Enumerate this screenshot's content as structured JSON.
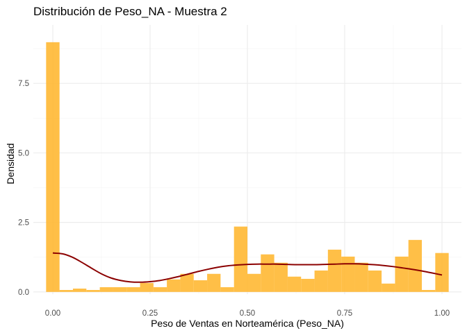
{
  "chart_data": {
    "type": "bar",
    "title": "Distribución de Peso_NA - Muestra 2",
    "xlabel": "Peso de Ventas en Norteamérica (Peso_NA)",
    "ylabel": "Densidad",
    "xlim": [
      -0.05,
      1.05
    ],
    "ylim": [
      -0.08,
      9.6
    ],
    "x_ticks": [
      {
        "value": 0.0,
        "label": "0.00"
      },
      {
        "value": 0.25,
        "label": "0.25"
      },
      {
        "value": 0.5,
        "label": "0.50"
      },
      {
        "value": 0.75,
        "label": "0.75"
      },
      {
        "value": 1.0,
        "label": "1.00"
      }
    ],
    "y_ticks": [
      {
        "value": 0.0,
        "label": "0.0"
      },
      {
        "value": 2.5,
        "label": "2.5"
      },
      {
        "value": 5.0,
        "label": "5.0"
      },
      {
        "value": 7.5,
        "label": "7.5"
      }
    ],
    "grid": true,
    "bin_width": 0.0345,
    "bins": [
      {
        "x": 0.0,
        "density": 8.98
      },
      {
        "x": 0.0345,
        "density": 0.07
      },
      {
        "x": 0.069,
        "density": 0.12
      },
      {
        "x": 0.1035,
        "density": 0.07
      },
      {
        "x": 0.138,
        "density": 0.17
      },
      {
        "x": 0.1724,
        "density": 0.17
      },
      {
        "x": 0.2069,
        "density": 0.17
      },
      {
        "x": 0.2414,
        "density": 0.32
      },
      {
        "x": 0.2759,
        "density": 0.17
      },
      {
        "x": 0.3103,
        "density": 0.45
      },
      {
        "x": 0.3448,
        "density": 0.65
      },
      {
        "x": 0.3793,
        "density": 0.42
      },
      {
        "x": 0.4138,
        "density": 0.65
      },
      {
        "x": 0.4483,
        "density": 0.17
      },
      {
        "x": 0.4828,
        "density": 2.35
      },
      {
        "x": 0.5172,
        "density": 0.65
      },
      {
        "x": 0.5517,
        "density": 1.35
      },
      {
        "x": 0.5862,
        "density": 1.05
      },
      {
        "x": 0.6207,
        "density": 0.55
      },
      {
        "x": 0.6552,
        "density": 0.47
      },
      {
        "x": 0.6897,
        "density": 0.77
      },
      {
        "x": 0.7241,
        "density": 1.52
      },
      {
        "x": 0.7586,
        "density": 1.27
      },
      {
        "x": 0.7931,
        "density": 1.05
      },
      {
        "x": 0.8276,
        "density": 0.77
      },
      {
        "x": 0.8621,
        "density": 0.3
      },
      {
        "x": 0.8966,
        "density": 1.27
      },
      {
        "x": 0.931,
        "density": 1.87
      },
      {
        "x": 0.9655,
        "density": 0.07
      },
      {
        "x": 1.0,
        "density": 1.4
      }
    ],
    "density_curve": {
      "x": [
        0.0,
        0.025,
        0.05,
        0.075,
        0.1,
        0.125,
        0.15,
        0.175,
        0.2,
        0.225,
        0.25,
        0.275,
        0.3,
        0.325,
        0.35,
        0.375,
        0.4,
        0.425,
        0.45,
        0.475,
        0.5,
        0.525,
        0.55,
        0.575,
        0.6,
        0.625,
        0.65,
        0.675,
        0.7,
        0.725,
        0.75,
        0.775,
        0.8,
        0.825,
        0.85,
        0.875,
        0.9,
        0.925,
        0.95,
        0.975,
        1.0
      ],
      "y": [
        1.4,
        1.37,
        1.25,
        1.06,
        0.85,
        0.65,
        0.5,
        0.41,
        0.36,
        0.35,
        0.37,
        0.41,
        0.48,
        0.56,
        0.65,
        0.74,
        0.82,
        0.89,
        0.94,
        0.97,
        0.99,
        1.0,
        1.0,
        1.0,
        0.99,
        0.98,
        0.98,
        0.98,
        0.99,
        1.0,
        1.01,
        1.01,
        1.0,
        0.98,
        0.95,
        0.91,
        0.86,
        0.81,
        0.75,
        0.68,
        0.61
      ]
    },
    "colors": {
      "bars": "#FFB833",
      "curve": "#8B0000",
      "grid": "#EBEBEB"
    }
  }
}
